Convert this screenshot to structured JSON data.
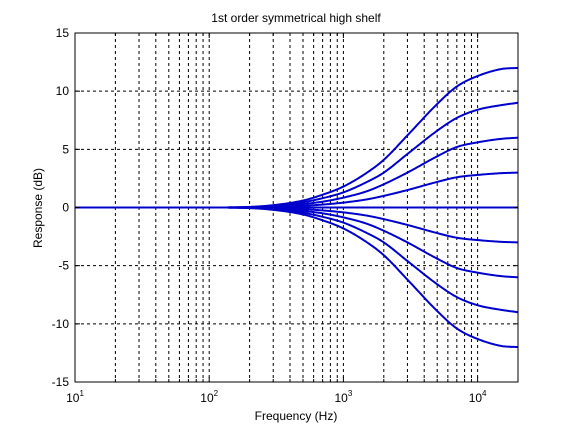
{
  "chart_data": {
    "type": "line",
    "title": "1st order symmetrical high shelf",
    "xlabel": "Frequency (Hz)",
    "ylabel": "Response (dB)",
    "x_scale": "log",
    "xlim": [
      10,
      20000
    ],
    "ylim": [
      -15,
      15
    ],
    "x_ticks": [
      {
        "base": "10",
        "exp": "1",
        "value": 10
      },
      {
        "base": "10",
        "exp": "2",
        "value": 100
      },
      {
        "base": "10",
        "exp": "3",
        "value": 1000
      },
      {
        "base": "10",
        "exp": "4",
        "value": 10000
      }
    ],
    "y_ticks": [
      "15",
      "10",
      "5",
      "0",
      "-5",
      "-10",
      "-15"
    ],
    "grid": true,
    "line_color": "#0000cc",
    "series": [
      {
        "gain_db": 12,
        "x": [
          10,
          100,
          200,
          300,
          500,
          700,
          1000,
          1500,
          2000,
          3000,
          5000,
          7000,
          10000,
          15000,
          20000
        ],
        "y": [
          0,
          0,
          0.05,
          0.2,
          0.6,
          1.1,
          1.8,
          3.0,
          4.1,
          6.2,
          8.9,
          10.4,
          11.3,
          11.9,
          12.0
        ]
      },
      {
        "gain_db": 9,
        "x": [
          10,
          100,
          200,
          300,
          500,
          700,
          1000,
          1500,
          2000,
          3000,
          5000,
          7000,
          10000,
          15000,
          20000
        ],
        "y": [
          0,
          0,
          0.04,
          0.15,
          0.45,
          0.8,
          1.3,
          2.2,
          3.0,
          4.6,
          6.6,
          7.7,
          8.4,
          8.8,
          9.0
        ]
      },
      {
        "gain_db": 6,
        "x": [
          10,
          100,
          200,
          300,
          500,
          700,
          1000,
          1500,
          2000,
          3000,
          5000,
          7000,
          10000,
          15000,
          20000
        ],
        "y": [
          0,
          0,
          0.03,
          0.1,
          0.3,
          0.5,
          0.85,
          1.4,
          2.0,
          3.0,
          4.4,
          5.2,
          5.6,
          5.9,
          6.0
        ]
      },
      {
        "gain_db": 3,
        "x": [
          10,
          100,
          200,
          300,
          500,
          700,
          1000,
          1500,
          2000,
          3000,
          5000,
          7000,
          10000,
          15000,
          20000
        ],
        "y": [
          0,
          0,
          0.01,
          0.05,
          0.15,
          0.25,
          0.42,
          0.7,
          1.0,
          1.5,
          2.2,
          2.6,
          2.8,
          2.95,
          3.0
        ]
      },
      {
        "gain_db": 0,
        "x": [
          10,
          20000
        ],
        "y": [
          0,
          0
        ]
      },
      {
        "gain_db": -3,
        "x": [
          10,
          100,
          200,
          300,
          500,
          700,
          1000,
          1500,
          2000,
          3000,
          5000,
          7000,
          10000,
          15000,
          20000
        ],
        "y": [
          0,
          0,
          -0.01,
          -0.05,
          -0.15,
          -0.25,
          -0.42,
          -0.7,
          -1.0,
          -1.5,
          -2.2,
          -2.6,
          -2.8,
          -2.95,
          -3.0
        ]
      },
      {
        "gain_db": -6,
        "x": [
          10,
          100,
          200,
          300,
          500,
          700,
          1000,
          1500,
          2000,
          3000,
          5000,
          7000,
          10000,
          15000,
          20000
        ],
        "y": [
          0,
          0,
          -0.03,
          -0.1,
          -0.3,
          -0.5,
          -0.85,
          -1.4,
          -2.0,
          -3.0,
          -4.4,
          -5.2,
          -5.6,
          -5.9,
          -6.0
        ]
      },
      {
        "gain_db": -9,
        "x": [
          10,
          100,
          200,
          300,
          500,
          700,
          1000,
          1500,
          2000,
          3000,
          5000,
          7000,
          10000,
          15000,
          20000
        ],
        "y": [
          0,
          0,
          -0.04,
          -0.15,
          -0.45,
          -0.8,
          -1.3,
          -2.2,
          -3.0,
          -4.6,
          -6.6,
          -7.7,
          -8.4,
          -8.8,
          -9.0
        ]
      },
      {
        "gain_db": -12,
        "x": [
          10,
          100,
          200,
          300,
          500,
          700,
          1000,
          1500,
          2000,
          3000,
          5000,
          7000,
          10000,
          15000,
          20000
        ],
        "y": [
          0,
          0,
          -0.05,
          -0.2,
          -0.6,
          -1.1,
          -1.8,
          -3.0,
          -4.1,
          -6.2,
          -8.9,
          -10.4,
          -11.3,
          -11.9,
          -12.0
        ]
      }
    ]
  }
}
